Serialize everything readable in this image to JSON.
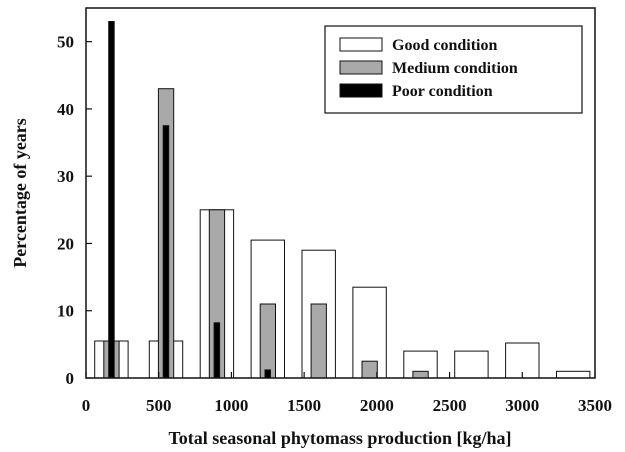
{
  "chart_data": {
    "type": "bar",
    "title": "",
    "xlabel": "Total seasonal phytomass production [kg/ha]",
    "ylabel": "Percentage of years",
    "xlim": [
      0,
      3500
    ],
    "ylim": [
      0,
      55
    ],
    "xticks": [
      0,
      500,
      1000,
      1500,
      2000,
      2500,
      3000,
      3500
    ],
    "yticks": [
      0,
      10,
      20,
      30,
      40,
      50
    ],
    "grid": false,
    "legend_position": "top-right",
    "categories": [
      175,
      550,
      900,
      1250,
      1600,
      1950,
      2300,
      2650,
      3000,
      3350
    ],
    "series": [
      {
        "name": "Good condition",
        "color": "#ffffff",
        "values": [
          5.5,
          5.5,
          25,
          20.5,
          19,
          13.5,
          4,
          4,
          5.2,
          1
        ]
      },
      {
        "name": "Medium condition",
        "color": "#a9a9a9",
        "values": [
          5.5,
          43,
          25,
          11,
          11,
          2.5,
          1,
          0,
          0,
          0
        ]
      },
      {
        "name": "Poor condition",
        "color": "#000000",
        "values": [
          53,
          37.5,
          8.2,
          1.2,
          0,
          0,
          0,
          0,
          0,
          0
        ]
      }
    ]
  }
}
